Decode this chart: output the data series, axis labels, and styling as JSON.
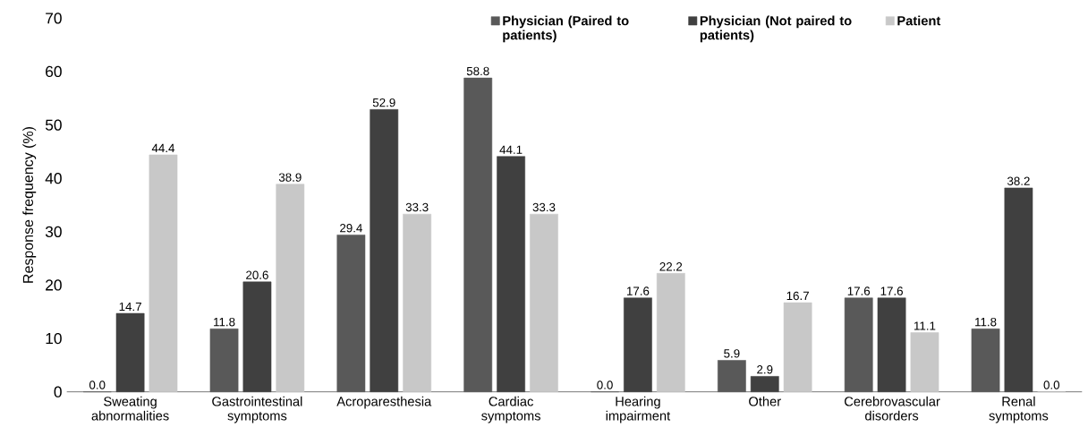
{
  "chart_data": {
    "type": "bar",
    "ylabel": "Response frequency (%)",
    "categories": [
      "Sweating abnormalities",
      "Gastrointestinal symptoms",
      "Acroparesthesia",
      "Cardiac symptoms",
      "Hearing impairment",
      "Other",
      "Cerebrovascular disorders",
      "Renal symptoms"
    ],
    "series": [
      {
        "name": "Physician (Paired to patients)",
        "color": "#595959",
        "values": [
          0.0,
          11.8,
          29.4,
          58.8,
          0.0,
          5.9,
          17.6,
          11.8
        ],
        "value_labels": [
          "0.0",
          "11.8",
          "29.4",
          "58.8",
          "0.0",
          "5.9",
          "17.6",
          "11.8"
        ]
      },
      {
        "name": "Physician (Not paired to patients)",
        "color": "#404040",
        "values": [
          14.7,
          20.6,
          52.9,
          44.1,
          17.6,
          2.9,
          17.6,
          38.2
        ],
        "value_labels": [
          "14.7",
          "20.6",
          "52.9",
          "44.1",
          "17.6",
          "2.9",
          "17.6",
          "38.2"
        ]
      },
      {
        "name": "Patient",
        "color": "#c8c8c8",
        "values": [
          44.4,
          38.9,
          33.3,
          33.3,
          22.2,
          16.7,
          11.1,
          0.0
        ],
        "value_labels": [
          "44.4",
          "38.9",
          "33.3",
          "33.3",
          "22.2",
          "16.7",
          "11.1",
          "0.0"
        ]
      }
    ],
    "ylim": [
      0,
      70
    ],
    "yticks": [
      0,
      10,
      20,
      30,
      40,
      50,
      60,
      70
    ],
    "legend": "top right"
  }
}
